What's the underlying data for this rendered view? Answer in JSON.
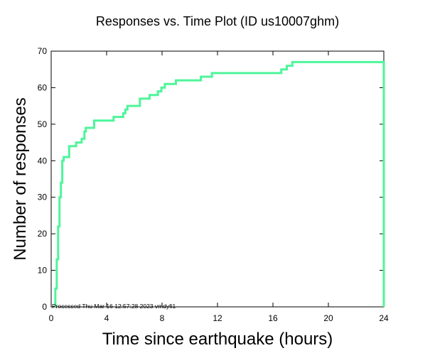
{
  "chart_data": {
    "type": "line",
    "title": "Responses vs. Time Plot (ID us10007ghm)",
    "xlabel": "Time since earthquake (hours)",
    "ylabel": "Number of responses",
    "xlim": [
      0,
      24
    ],
    "ylim": [
      0,
      70
    ],
    "x_ticks": [
      0,
      4,
      8,
      12,
      16,
      20,
      24
    ],
    "y_ticks": [
      0,
      10,
      20,
      30,
      40,
      50,
      60,
      70
    ],
    "grid": false,
    "step": true,
    "series_color": "#4ef59a",
    "points": [
      {
        "x": 0.3,
        "y": 0
      },
      {
        "x": 0.3,
        "y": 5
      },
      {
        "x": 0.4,
        "y": 13
      },
      {
        "x": 0.5,
        "y": 22
      },
      {
        "x": 0.6,
        "y": 30
      },
      {
        "x": 0.7,
        "y": 34
      },
      {
        "x": 0.8,
        "y": 40
      },
      {
        "x": 0.9,
        "y": 41
      },
      {
        "x": 1.3,
        "y": 44
      },
      {
        "x": 1.8,
        "y": 45
      },
      {
        "x": 2.2,
        "y": 46
      },
      {
        "x": 2.4,
        "y": 48
      },
      {
        "x": 2.5,
        "y": 49
      },
      {
        "x": 3.1,
        "y": 51
      },
      {
        "x": 4.5,
        "y": 52
      },
      {
        "x": 5.2,
        "y": 53
      },
      {
        "x": 5.35,
        "y": 54
      },
      {
        "x": 5.5,
        "y": 55
      },
      {
        "x": 6.4,
        "y": 57
      },
      {
        "x": 7.1,
        "y": 58
      },
      {
        "x": 7.7,
        "y": 59
      },
      {
        "x": 7.95,
        "y": 60
      },
      {
        "x": 8.2,
        "y": 61
      },
      {
        "x": 9.0,
        "y": 62
      },
      {
        "x": 10.8,
        "y": 63
      },
      {
        "x": 11.6,
        "y": 64
      },
      {
        "x": 16.6,
        "y": 65
      },
      {
        "x": 17.0,
        "y": 66
      },
      {
        "x": 17.4,
        "y": 67
      },
      {
        "x": 24.0,
        "y": 67
      },
      {
        "x": 24.0,
        "y": 0
      }
    ],
    "annotation": "Processed Thu Mar 16 12:57:28 2023 vmdyfi1"
  }
}
